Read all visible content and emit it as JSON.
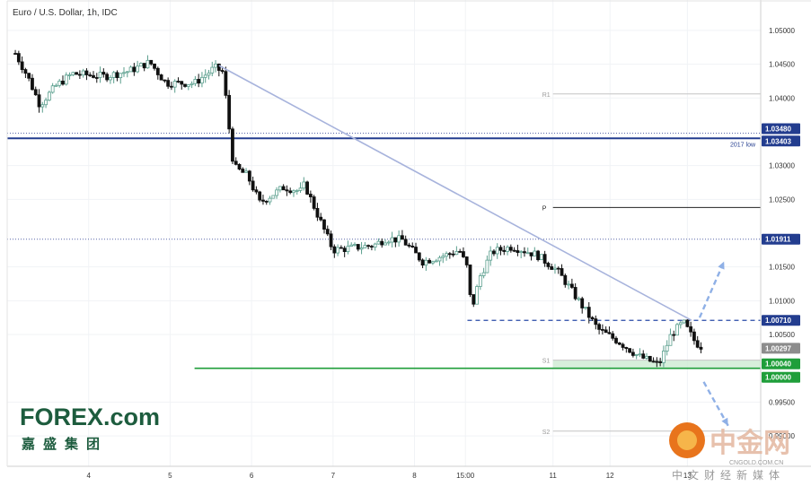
{
  "header": {
    "title": "Euro / U.S. Dollar, 1h, IDC"
  },
  "brand": {
    "forex_logo": "FOREX.com",
    "forex_sub": "嘉盛集团",
    "cngold_logo": "中金网",
    "cngold_url": "CNGOLD.COM.CN",
    "cngold_sub": "中文财经新媒体"
  },
  "colors": {
    "up": "#5b9f8e",
    "down": "#111111",
    "support": "#1f9e3a",
    "support_zone": "#cdebd2",
    "low_line": "#233d8f",
    "trendline": "#a7b3dc",
    "dashed": "#2749a8",
    "arrow": "#8fb0e6",
    "last_price_bg": "#8c8c8c"
  },
  "chart_data": {
    "type": "candlestick",
    "title": "Euro / U.S. Dollar, 1h, IDC",
    "ylim": [
      0.9855,
      1.0545
    ],
    "y_ticks": [
      {
        "value": 1.05,
        "label": "1.05000"
      },
      {
        "value": 1.045,
        "label": "1.04500"
      },
      {
        "value": 1.04,
        "label": "1.04000"
      },
      {
        "value": 1.03,
        "label": "1.03000"
      },
      {
        "value": 1.025,
        "label": "1.02500"
      },
      {
        "value": 1.015,
        "label": "1.01500"
      },
      {
        "value": 1.01,
        "label": "1.01000"
      },
      {
        "value": 1.005,
        "label": "1.00500"
      },
      {
        "value": 0.995,
        "label": "0.99500"
      },
      {
        "value": 0.99,
        "label": "0.99000"
      }
    ],
    "x_ticks": [
      {
        "t": 4,
        "label": "4"
      },
      {
        "t": 5,
        "label": "5"
      },
      {
        "t": 6,
        "label": "6"
      },
      {
        "t": 7,
        "label": "7"
      },
      {
        "t": 8,
        "label": "8"
      },
      {
        "t": 8.625,
        "label": "15:00"
      },
      {
        "t": 9.7,
        "label": "11"
      },
      {
        "t": 10.4,
        "label": "12"
      },
      {
        "t": 11.35,
        "label": "13"
      }
    ],
    "price_tags": [
      {
        "value": 1.0348,
        "label": "1.03480",
        "color": "#233d8f"
      },
      {
        "value": 1.03403,
        "label": "1.03403",
        "color": "#233d8f"
      },
      {
        "value": 1.01911,
        "label": "1.01911",
        "color": "#233d8f"
      },
      {
        "value": 1.0071,
        "label": "1.00710",
        "color": "#233d8f"
      },
      {
        "value": 1.00297,
        "label": "1.00297",
        "color": "#8c8c8c"
      },
      {
        "value": 1.0004,
        "label": "1.00040",
        "color": "#1f9e3a"
      },
      {
        "value": 1.0,
        "label": "1.00000",
        "color": "#1f9e3a"
      }
    ],
    "pivot_levels": [
      {
        "name": "R1",
        "value": 1.0406
      },
      {
        "name": "P",
        "value": 1.0238
      },
      {
        "name": "S1",
        "value": 1.0012
      },
      {
        "name": "S2",
        "value": 0.9907
      }
    ],
    "annotations": [
      {
        "text": "2017 low",
        "value": 1.03403
      }
    ],
    "horizontal_lines": [
      {
        "name": "2017 low",
        "value": 1.03403,
        "style": "solid"
      },
      {
        "name": "upper dotted",
        "value": 1.0348,
        "style": "dotted"
      },
      {
        "name": "dotted resistance",
        "value": 1.01911,
        "style": "dotted"
      },
      {
        "name": "dashed resistance",
        "value": 1.0071,
        "style": "dashed",
        "from_t": 8.65
      },
      {
        "name": "parity support",
        "value": 1.0,
        "style": "solid",
        "from_t": 5.3
      }
    ],
    "support_zone": {
      "from": 1.0,
      "to": 1.0012,
      "from_t": 9.7
    },
    "trendline": {
      "t1": 5.6,
      "v1": 1.0448,
      "t2": 11.4,
      "v2": 1.0071
    },
    "scenario_arrows": [
      {
        "direction": "up",
        "t1": 11.5,
        "v1": 1.0075,
        "t2": 11.8,
        "v2": 1.0158
      },
      {
        "direction": "down",
        "t1": 11.55,
        "v1": 0.998,
        "t2": 11.85,
        "v2": 0.9915
      }
    ],
    "candles_anchor_points": [
      [
        3.1,
        1.0466
      ],
      [
        3.25,
        1.0432
      ],
      [
        3.4,
        1.039
      ],
      [
        3.6,
        1.0418
      ],
      [
        3.8,
        1.0436
      ],
      [
        4.2,
        1.0432
      ],
      [
        4.5,
        1.044
      ],
      [
        4.75,
        1.0453
      ],
      [
        4.95,
        1.0422
      ],
      [
        5.3,
        1.0422
      ],
      [
        5.55,
        1.0445
      ],
      [
        5.65,
        1.0438
      ],
      [
        5.72,
        1.036
      ],
      [
        5.78,
        1.0298
      ],
      [
        5.95,
        1.0285
      ],
      [
        6.1,
        1.0245
      ],
      [
        6.4,
        1.0268
      ],
      [
        6.6,
        1.0262
      ],
      [
        6.65,
        1.0272
      ],
      [
        6.8,
        1.023
      ],
      [
        7.0,
        1.0175
      ],
      [
        7.5,
        1.0182
      ],
      [
        7.65,
        1.0192
      ],
      [
        7.85,
        1.019
      ],
      [
        8.1,
        1.0158
      ],
      [
        8.4,
        1.0168
      ],
      [
        8.55,
        1.0175
      ],
      [
        8.65,
        1.0148
      ],
      [
        8.7,
        1.0085
      ],
      [
        8.8,
        1.0135
      ],
      [
        8.95,
        1.0172
      ],
      [
        9.2,
        1.018
      ],
      [
        9.5,
        1.0168
      ],
      [
        9.75,
        1.0145
      ],
      [
        9.9,
        1.012
      ],
      [
        10.1,
        1.0085
      ],
      [
        10.25,
        1.0058
      ],
      [
        10.5,
        1.004
      ],
      [
        10.75,
        1.0018
      ],
      [
        11.0,
        1.0005
      ],
      [
        11.15,
        1.005
      ],
      [
        11.3,
        1.0068
      ],
      [
        11.45,
        1.0038
      ],
      [
        11.55,
        1.003
      ]
    ]
  }
}
